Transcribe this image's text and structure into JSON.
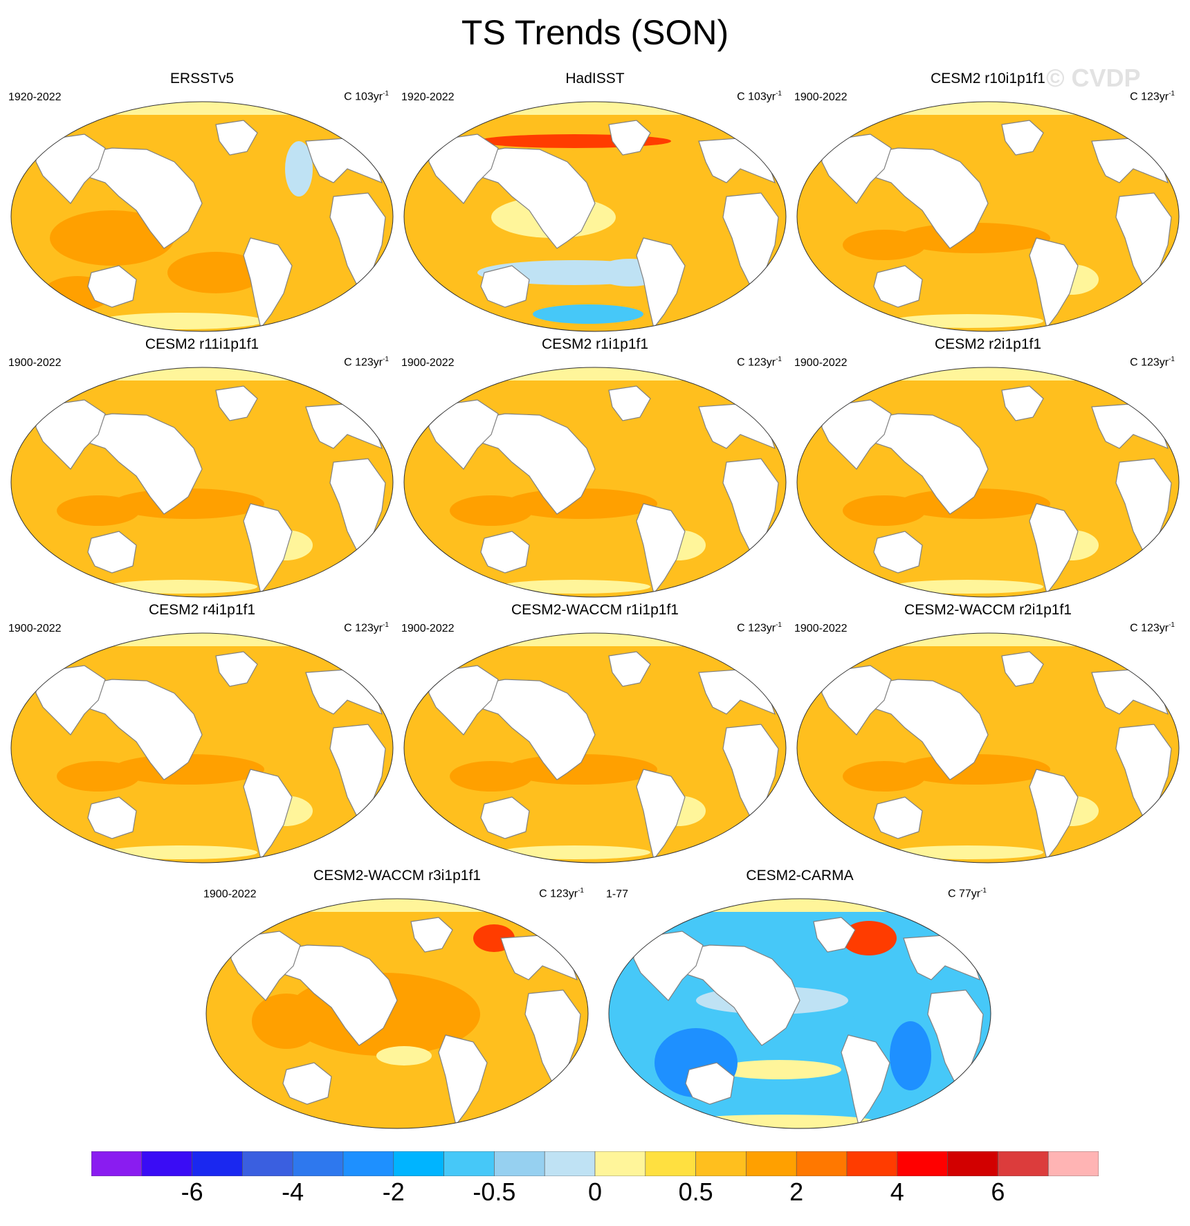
{
  "title": "TS Trends (SON)",
  "watermark": "© CVDP",
  "panels": [
    {
      "name": "ERSSTv5",
      "years": "1920-2022",
      "units": "C 103yr",
      "sup": "-1",
      "style": "obs1"
    },
    {
      "name": "HadISST",
      "years": "1920-2022",
      "units": "C 103yr",
      "sup": "-1",
      "style": "obs2"
    },
    {
      "name": "CESM2 r10i1p1f1",
      "years": "1900-2022",
      "units": "C 123yr",
      "sup": "-1",
      "style": "model"
    },
    {
      "name": "CESM2 r11i1p1f1",
      "years": "1900-2022",
      "units": "C 123yr",
      "sup": "-1",
      "style": "model"
    },
    {
      "name": "CESM2 r1i1p1f1",
      "years": "1900-2022",
      "units": "C 123yr",
      "sup": "-1",
      "style": "model"
    },
    {
      "name": "CESM2 r2i1p1f1",
      "years": "1900-2022",
      "units": "C 123yr",
      "sup": "-1",
      "style": "model"
    },
    {
      "name": "CESM2 r4i1p1f1",
      "years": "1900-2022",
      "units": "C 123yr",
      "sup": "-1",
      "style": "model"
    },
    {
      "name": "CESM2-WACCM r1i1p1f1",
      "years": "1900-2022",
      "units": "C 123yr",
      "sup": "-1",
      "style": "model"
    },
    {
      "name": "CESM2-WACCM r2i1p1f1",
      "years": "1900-2022",
      "units": "C 123yr",
      "sup": "-1",
      "style": "model"
    },
    {
      "name": "CESM2-WACCM r3i1p1f1",
      "years": "1900-2022",
      "units": "C 123yr",
      "sup": "-1",
      "style": "warm"
    },
    {
      "name": "CESM2-CARMA",
      "years": "1-77",
      "units": "C 77yr",
      "sup": "-1",
      "style": "cool"
    }
  ],
  "colorbar": {
    "colors": [
      "#8a1cf0",
      "#3a0cf5",
      "#1a28f0",
      "#3a5fe0",
      "#2e78ee",
      "#1e90ff",
      "#00b4ff",
      "#46c8f8",
      "#96d0f0",
      "#bfe2f4",
      "#fff59a",
      "#ffe040",
      "#ffbf1e",
      "#ffa000",
      "#ff7800",
      "#ff3c00",
      "#ff0000",
      "#d20000",
      "#dc3c3c",
      "#ffb4b4"
    ],
    "labels": [
      "-6",
      "-4",
      "-2",
      "-0.5",
      "0",
      "0.5",
      "2",
      "4",
      "6"
    ],
    "label_boundaries": [
      2,
      4,
      6,
      8,
      10,
      12,
      14,
      16,
      18
    ]
  },
  "palette": {
    "light_blue": "#bfe2f4",
    "blue": "#46c8f8",
    "deep_blue": "#1e90ff",
    "pale_yellow": "#fff59a",
    "yellow": "#ffe040",
    "gold": "#ffbf1e",
    "orange": "#ffa000",
    "red": "#ff3c00"
  }
}
